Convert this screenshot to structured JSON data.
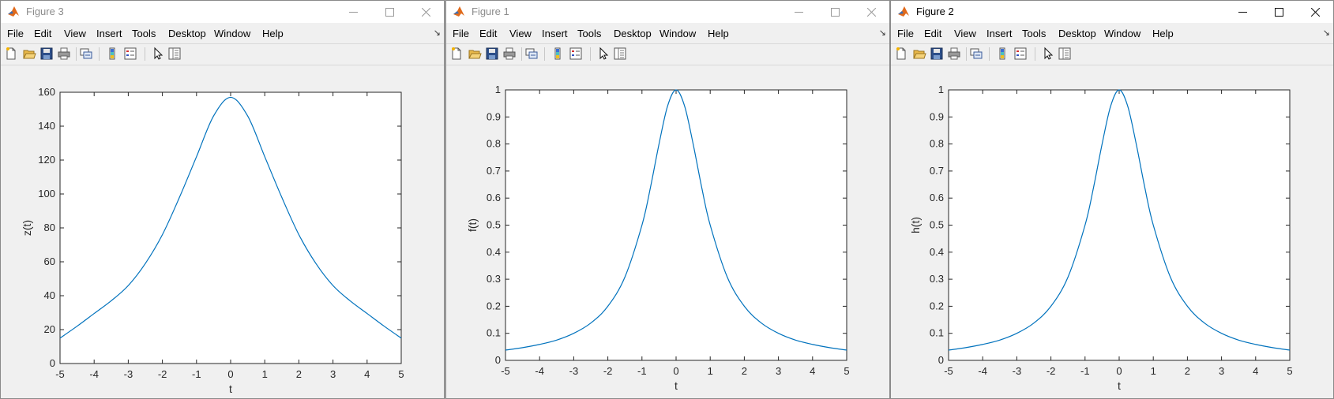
{
  "menu_labels": [
    "File",
    "Edit",
    "View",
    "Insert",
    "Tools",
    "Desktop",
    "Window",
    "Help"
  ],
  "colors": {
    "line": "#0072BD",
    "axes": "#262626",
    "figure_bg": "#f0f0f0"
  },
  "toolbar_icons": [
    "new-figure-icon",
    "open-file-icon",
    "save-icon",
    "print-icon",
    "link-plot-icon",
    "insert-colorbar-icon",
    "insert-legend-icon",
    "edit-plot-icon",
    "property-inspector-icon"
  ],
  "windows": [
    {
      "title": "Figure 3",
      "chart": {
        "type": "line",
        "xlabel": "t",
        "ylabel": "z(t)",
        "xlim": [
          -5,
          5
        ],
        "ylim": [
          0,
          160
        ],
        "x_ticks": [
          "-5",
          "-4",
          "-3",
          "-2",
          "-1",
          "0",
          "1",
          "2",
          "3",
          "4",
          "5"
        ],
        "y_ticks": [
          "0",
          "20",
          "40",
          "60",
          "80",
          "100",
          "120",
          "140",
          "160"
        ],
        "x": [
          -5,
          -4.5,
          -4,
          -3.5,
          -3,
          -2.5,
          -2,
          -1.5,
          -1,
          -0.5,
          0,
          0.5,
          1,
          1.5,
          2,
          2.5,
          3,
          3.5,
          4,
          4.5,
          5
        ],
        "y": [
          15,
          22,
          29.5,
          37,
          46,
          59,
          76,
          98,
          122,
          146,
          157,
          146,
          122,
          98,
          76,
          59,
          46,
          37,
          29.5,
          22,
          15
        ]
      }
    },
    {
      "title": "Figure 1",
      "chart": {
        "type": "line",
        "xlabel": "t",
        "ylabel": "f(t)",
        "xlim": [
          -5,
          5
        ],
        "ylim": [
          0,
          1
        ],
        "x_ticks": [
          "-5",
          "-4",
          "-3",
          "-2",
          "-1",
          "0",
          "1",
          "2",
          "3",
          "4",
          "5"
        ],
        "y_ticks": [
          "0",
          "0.1",
          "0.2",
          "0.3",
          "0.4",
          "0.5",
          "0.6",
          "0.7",
          "0.8",
          "0.9",
          "1"
        ],
        "x": [
          -5,
          -4.5,
          -4,
          -3.5,
          -3,
          -2.5,
          -2,
          -1.5,
          -1,
          -0.75,
          -0.5,
          -0.25,
          0,
          0.25,
          0.5,
          0.75,
          1,
          1.5,
          2,
          2.5,
          3,
          3.5,
          4,
          4.5,
          5
        ],
        "y": [
          0.038,
          0.047,
          0.059,
          0.075,
          0.1,
          0.138,
          0.2,
          0.308,
          0.5,
          0.64,
          0.8,
          0.94,
          1,
          0.94,
          0.8,
          0.64,
          0.5,
          0.308,
          0.2,
          0.138,
          0.1,
          0.075,
          0.059,
          0.047,
          0.038
        ]
      }
    },
    {
      "title": "Figure 2",
      "chart": {
        "type": "line",
        "xlabel": "t",
        "ylabel": "h(t)",
        "xlim": [
          -5,
          5
        ],
        "ylim": [
          0,
          1
        ],
        "x_ticks": [
          "-5",
          "-4",
          "-3",
          "-2",
          "-1",
          "0",
          "1",
          "2",
          "3",
          "4",
          "5"
        ],
        "y_ticks": [
          "0",
          "0.1",
          "0.2",
          "0.3",
          "0.4",
          "0.5",
          "0.6",
          "0.7",
          "0.8",
          "0.9",
          "1"
        ],
        "x": [
          -5,
          -4.5,
          -4,
          -3.5,
          -3,
          -2.5,
          -2,
          -1.5,
          -1,
          -0.75,
          -0.5,
          -0.25,
          0,
          0.25,
          0.5,
          0.75,
          1,
          1.5,
          2,
          2.5,
          3,
          3.5,
          4,
          4.5,
          5
        ],
        "y": [
          0.038,
          0.047,
          0.059,
          0.075,
          0.1,
          0.138,
          0.2,
          0.308,
          0.5,
          0.64,
          0.8,
          0.94,
          1,
          0.94,
          0.8,
          0.64,
          0.5,
          0.308,
          0.2,
          0.138,
          0.1,
          0.075,
          0.059,
          0.047,
          0.038
        ]
      }
    }
  ]
}
